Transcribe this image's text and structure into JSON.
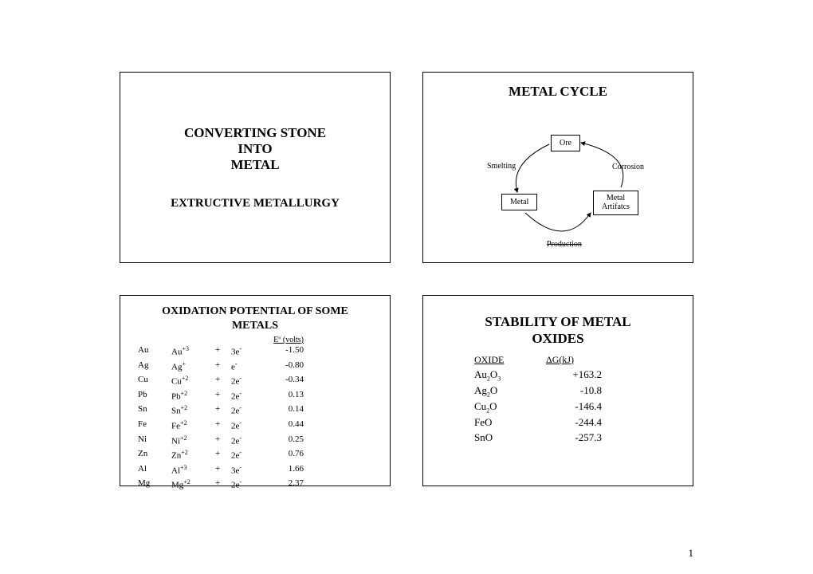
{
  "panel1": {
    "line1": "CONVERTING STONE",
    "line2": "INTO",
    "line3": "METAL",
    "sub": "EXTRUCTIVE METALLURGY"
  },
  "panel2": {
    "title": "METAL CYCLE",
    "nodes": {
      "ore": "Ore",
      "metal": "Metal",
      "artifacts_l1": "Metal",
      "artifacts_l2": "Artifatcs"
    },
    "labels": {
      "smelting": "Smelting",
      "corrosion": "Corrosion",
      "production": "Production"
    }
  },
  "panel3": {
    "title_l1": "OXIDATION POTENTIAL OF SOME",
    "title_l2": "METALS",
    "header_eo": "Eº (volts)",
    "rows": [
      {
        "m": "Au",
        "ion": "Au",
        "chg": "+3",
        "plus": "+",
        "e": "3e",
        "eneg": "-",
        "v": "-1.50"
      },
      {
        "m": "Ag",
        "ion": "Ag",
        "chg": "+",
        "plus": "+",
        "e": "e",
        "eneg": "-",
        "v": "-0.80"
      },
      {
        "m": "Cu",
        "ion": "Cu",
        "chg": "+2",
        "plus": "+",
        "e": "2e",
        "eneg": "-",
        "v": "-0.34"
      },
      {
        "m": "Pb",
        "ion": "Pb",
        "chg": "+2",
        "plus": "+",
        "e": "2e",
        "eneg": "-",
        "v": "0.13"
      },
      {
        "m": "Sn",
        "ion": "Sn",
        "chg": "+2",
        "plus": "+",
        "e": "2e",
        "eneg": "-",
        "v": "0.14"
      },
      {
        "m": "Fe",
        "ion": "Fe",
        "chg": "+2",
        "plus": "+",
        "e": "2e",
        "eneg": "-",
        "v": "0.44"
      },
      {
        "m": "Ni",
        "ion": "Ni",
        "chg": "+2",
        "plus": "+",
        "e": "2e",
        "eneg": "-",
        "v": "0.25"
      },
      {
        "m": "Zn",
        "ion": "Zn",
        "chg": "+2",
        "plus": "+",
        "e": "2e",
        "eneg": "-",
        "v": "0.76"
      },
      {
        "m": "Al",
        "ion": "Al",
        "chg": "+3",
        "plus": "+",
        "e": "3e",
        "eneg": "-",
        "v": "1.66"
      },
      {
        "m": "Mg",
        "ion": "Mg",
        "chg": "+2",
        "plus": "+",
        "e": "2e",
        "eneg": "-",
        "v": "2.37"
      }
    ]
  },
  "panel4": {
    "title_l1": "STABILITY OF METAL",
    "title_l2": "OXIDES",
    "header_oxide": "OXIDE",
    "header_dg": "ΔG(kJ)",
    "rows": [
      {
        "ox": "Au",
        "sub": "2",
        "ox2": "O",
        "sub2": "3",
        "v": "+163.2"
      },
      {
        "ox": "Ag",
        "sub": "2",
        "ox2": "O",
        "sub2": "",
        "v": "-10.8"
      },
      {
        "ox": "Cu",
        "sub": "2",
        "ox2": "O",
        "sub2": "",
        "v": "-146.4"
      },
      {
        "ox": "FeO",
        "sub": "",
        "ox2": "",
        "sub2": "",
        "v": "-244.4"
      },
      {
        "ox": "SnO",
        "sub": "",
        "ox2": "",
        "sub2": "",
        "v": "-257.3"
      }
    ]
  },
  "pagenum": "1"
}
